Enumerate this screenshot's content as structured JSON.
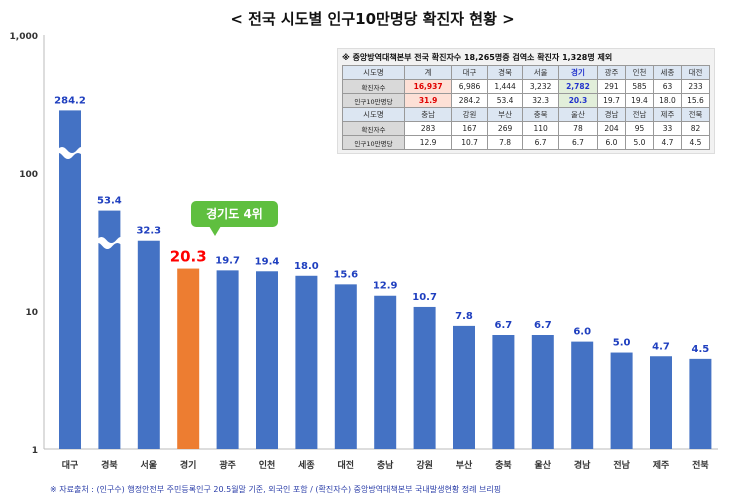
{
  "chart_data": {
    "type": "bar",
    "title": "< 전국 시도별 인구10만명당 확진자 현황 >",
    "categories": [
      "대구",
      "경북",
      "서울",
      "경기",
      "광주",
      "인천",
      "세종",
      "대전",
      "충남",
      "강원",
      "부산",
      "충북",
      "울산",
      "경남",
      "전남",
      "제주",
      "전북"
    ],
    "values": [
      284.2,
      53.4,
      32.3,
      20.3,
      19.7,
      19.4,
      18.0,
      15.6,
      12.9,
      10.7,
      7.8,
      6.7,
      6.7,
      6.0,
      5.0,
      4.7,
      4.5
    ],
    "data_labels": [
      "284.2",
      "53.4",
      "32.3",
      "20.3",
      "19.7",
      "19.4",
      "18.0",
      "15.6",
      "12.9",
      "10.7",
      "7.8",
      "6.7",
      "6.7",
      "6.0",
      "5.0",
      "4.7",
      "4.5"
    ],
    "yscale": "log",
    "ylim": [
      1,
      1000
    ],
    "yticks": [
      "1",
      "10",
      "100",
      "1,000"
    ],
    "grid": false,
    "highlight_category": "경기",
    "colors": {
      "bar": "#4472c4",
      "highlight": "#ed7d31",
      "label": "#1f3fbf",
      "highlight_label": "#ff0000"
    },
    "broken_axis_bars": [
      "대구",
      "경북"
    ],
    "annotation": "경기도 4위"
  },
  "table": {
    "note": "※ 중앙방역대책본부 전국 확진자수 18,265명중 검역소 확진자 1,328명 제외",
    "rows": [
      [
        "시도명",
        "계",
        "대구",
        "경북",
        "서울",
        "경기",
        "광주",
        "인천",
        "세종",
        "대전"
      ],
      [
        "확진자수",
        "16,937",
        "6,986",
        "1,444",
        "3,232",
        "2,782",
        "291",
        "585",
        "63",
        "233"
      ],
      [
        "인구10만명당",
        "31.9",
        "284.2",
        "53.4",
        "32.3",
        "20.3",
        "19.7",
        "19.4",
        "18.0",
        "15.6"
      ],
      [
        "시도명",
        "충남",
        "강원",
        "부산",
        "충북",
        "울산",
        "경남",
        "전남",
        "제주",
        "전북"
      ],
      [
        "확진자수",
        "283",
        "167",
        "269",
        "110",
        "78",
        "204",
        "95",
        "33",
        "82"
      ],
      [
        "인구10만명당",
        "12.9",
        "10.7",
        "7.8",
        "6.7",
        "6.7",
        "6.0",
        "5.0",
        "4.7",
        "4.5"
      ]
    ]
  },
  "footer": "※ 자료출처 : (인구수) 행정안전부 주민등록인구 20.5월말 기준, 외국인 포함 / (확진자수) 중앙방역대책본부 국내발생현황 정례 브리핑"
}
